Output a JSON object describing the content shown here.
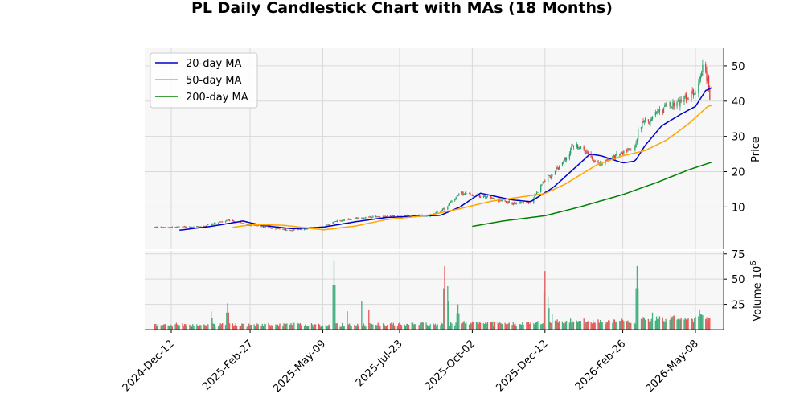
{
  "chart_data": {
    "type": "candlestick",
    "title": "PL Daily Candlestick Chart with MAs (18 Months)",
    "price_panel": {
      "ylabel": "Price",
      "ylim": [
        -2,
        55
      ],
      "yticks": [
        10,
        20,
        30,
        40,
        50
      ],
      "grid": true,
      "legend_position": "upper-left",
      "background": "#f7f7f7"
    },
    "volume_panel": {
      "ylabel": "Volume",
      "ylabel_exponent": "10",
      "ylabel_exponent_power": "6",
      "ylim": [
        0,
        78
      ],
      "yticks": [
        25,
        50,
        75
      ],
      "grid": true
    },
    "x_axis": {
      "start": "2024-11-26",
      "end": "2026-05-24",
      "ticks": [
        "2024-Dec-12",
        "2025-Feb-27",
        "2025-May-09",
        "2025-Jul-23",
        "2025-Oct-02",
        "2025-Dec-12",
        "2026-Feb-26",
        "2026-May-08"
      ]
    },
    "colors": {
      "up": "#26a269",
      "down": "#e03c3c",
      "ma20": "#0000cc",
      "ma50": "#ffa500",
      "ma200": "#008000",
      "grid": "#d9d9d9"
    },
    "price_anchors": [
      [
        "2024-11-26",
        4.2
      ],
      [
        "2024-12-12",
        4.3
      ],
      [
        "2025-01-10",
        4.4
      ],
      [
        "2025-02-05",
        6.2
      ],
      [
        "2025-02-27",
        4.9
      ],
      [
        "2025-03-20",
        4.0
      ],
      [
        "2025-04-08",
        3.4
      ],
      [
        "2025-04-25",
        3.9
      ],
      [
        "2025-05-09",
        4.3
      ],
      [
        "2025-05-22",
        6.0
      ],
      [
        "2025-06-15",
        6.8
      ],
      [
        "2025-07-01",
        7.2
      ],
      [
        "2025-07-23",
        7.4
      ],
      [
        "2025-08-20",
        7.5
      ],
      [
        "2025-09-05",
        9.5
      ],
      [
        "2025-09-20",
        14.0
      ],
      [
        "2025-10-02",
        13.5
      ],
      [
        "2025-10-20",
        12.5
      ],
      [
        "2025-11-10",
        11.0
      ],
      [
        "2025-11-28",
        11.5
      ],
      [
        "2025-12-12",
        17.5
      ],
      [
        "2025-12-28",
        22.0
      ],
      [
        "2026-01-10",
        28.0
      ],
      [
        "2026-01-22",
        25.0
      ],
      [
        "2026-02-01",
        22.0
      ],
      [
        "2026-02-26",
        25.5
      ],
      [
        "2026-03-10",
        27.0
      ],
      [
        "2026-03-14",
        33.0
      ],
      [
        "2026-03-25",
        35.0
      ],
      [
        "2026-04-10",
        38.5
      ],
      [
        "2026-04-25",
        40.0
      ],
      [
        "2026-05-08",
        43.0
      ],
      [
        "2026-05-15",
        50.0
      ],
      [
        "2026-05-20",
        46.0
      ],
      [
        "2026-05-24",
        35.5
      ]
    ],
    "ma20": [
      [
        "2024-12-20",
        3.4
      ],
      [
        "2025-01-20",
        4.5
      ],
      [
        "2025-02-20",
        6.0
      ],
      [
        "2025-03-10",
        4.8
      ],
      [
        "2025-04-10",
        3.8
      ],
      [
        "2025-05-10",
        4.3
      ],
      [
        "2025-06-10",
        5.8
      ],
      [
        "2025-07-10",
        7.0
      ],
      [
        "2025-08-10",
        7.4
      ],
      [
        "2025-09-01",
        7.6
      ],
      [
        "2025-09-20",
        10.0
      ],
      [
        "2025-10-10",
        13.9
      ],
      [
        "2025-11-10",
        12.0
      ],
      [
        "2025-11-28",
        11.5
      ],
      [
        "2025-12-20",
        15.5
      ],
      [
        "2026-01-10",
        21.0
      ],
      [
        "2026-01-25",
        25.0
      ],
      [
        "2026-02-05",
        24.5
      ],
      [
        "2026-02-26",
        22.5
      ],
      [
        "2026-03-10",
        23.0
      ],
      [
        "2026-03-20",
        27.5
      ],
      [
        "2026-04-05",
        33.0
      ],
      [
        "2026-04-25",
        36.5
      ],
      [
        "2026-05-08",
        38.5
      ],
      [
        "2026-05-18",
        43.0
      ],
      [
        "2026-05-24",
        43.8
      ]
    ],
    "ma50": [
      [
        "2025-02-10",
        4.2
      ],
      [
        "2025-03-01",
        5.0
      ],
      [
        "2025-04-01",
        4.8
      ],
      [
        "2025-05-10",
        3.5
      ],
      [
        "2025-06-10",
        4.6
      ],
      [
        "2025-07-10",
        6.4
      ],
      [
        "2025-08-20",
        7.6
      ],
      [
        "2025-09-20",
        9.5
      ],
      [
        "2025-10-20",
        11.6
      ],
      [
        "2025-12-12",
        13.8
      ],
      [
        "2026-01-01",
        16.5
      ],
      [
        "2026-02-01",
        22.0
      ],
      [
        "2026-02-26",
        24.5
      ],
      [
        "2026-03-20",
        26.0
      ],
      [
        "2026-04-10",
        29.0
      ],
      [
        "2026-05-01",
        33.5
      ],
      [
        "2026-05-20",
        38.5
      ],
      [
        "2026-05-24",
        38.8
      ]
    ],
    "ma200": [
      [
        "2025-10-02",
        4.5
      ],
      [
        "2025-11-01",
        6.0
      ],
      [
        "2025-12-12",
        7.5
      ],
      [
        "2026-01-15",
        10.0
      ],
      [
        "2026-02-26",
        13.5
      ],
      [
        "2026-04-01",
        17.0
      ],
      [
        "2026-05-01",
        20.5
      ],
      [
        "2026-05-24",
        22.7
      ]
    ],
    "volume_spikes": [
      [
        "2025-01-20",
        18
      ],
      [
        "2025-02-05",
        26
      ],
      [
        "2025-05-20",
        68
      ],
      [
        "2025-06-01",
        28
      ],
      [
        "2025-06-15",
        44
      ],
      [
        "2025-06-22",
        30
      ],
      [
        "2025-09-05",
        63
      ],
      [
        "2025-09-08",
        43
      ],
      [
        "2025-09-18",
        25
      ],
      [
        "2025-12-12",
        58
      ],
      [
        "2025-12-15",
        33
      ],
      [
        "2025-12-20",
        24
      ],
      [
        "2026-03-12",
        63
      ],
      [
        "2026-03-14",
        28
      ],
      [
        "2026-03-28",
        26
      ],
      [
        "2026-05-12",
        20
      ]
    ],
    "legend": [
      {
        "label": "20-day MA",
        "color": "#0000cc"
      },
      {
        "label": "50-day MA",
        "color": "#ffa500"
      },
      {
        "label": "200-day MA",
        "color": "#008000"
      }
    ]
  }
}
